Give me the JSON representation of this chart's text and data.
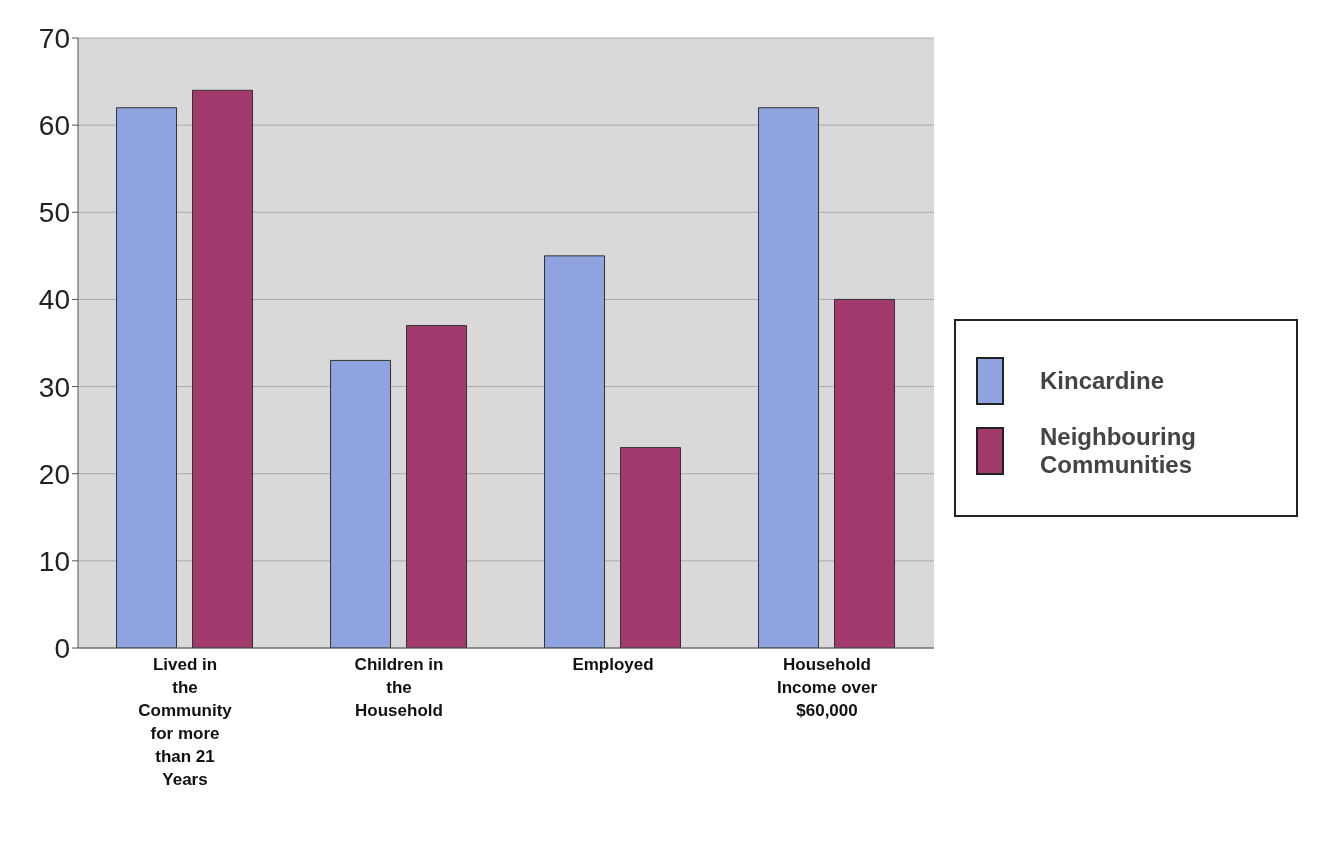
{
  "chart_data": {
    "type": "bar",
    "categories": [
      "Lived in the Community for more than 21 Years",
      "Children in the Household",
      "Employed",
      "Household Income over $60,000"
    ],
    "series": [
      {
        "name": "Kincardine",
        "color": "#8ea3e0",
        "values": [
          62,
          33,
          45,
          62
        ]
      },
      {
        "name": "Neighbouring Communities",
        "color": "#a33a6e",
        "values": [
          64,
          37,
          23,
          40
        ]
      }
    ],
    "ylim": [
      0,
      70
    ],
    "yticks": [
      0,
      10,
      20,
      30,
      40,
      50,
      60,
      70
    ],
    "grid": "y",
    "legend": "right"
  }
}
